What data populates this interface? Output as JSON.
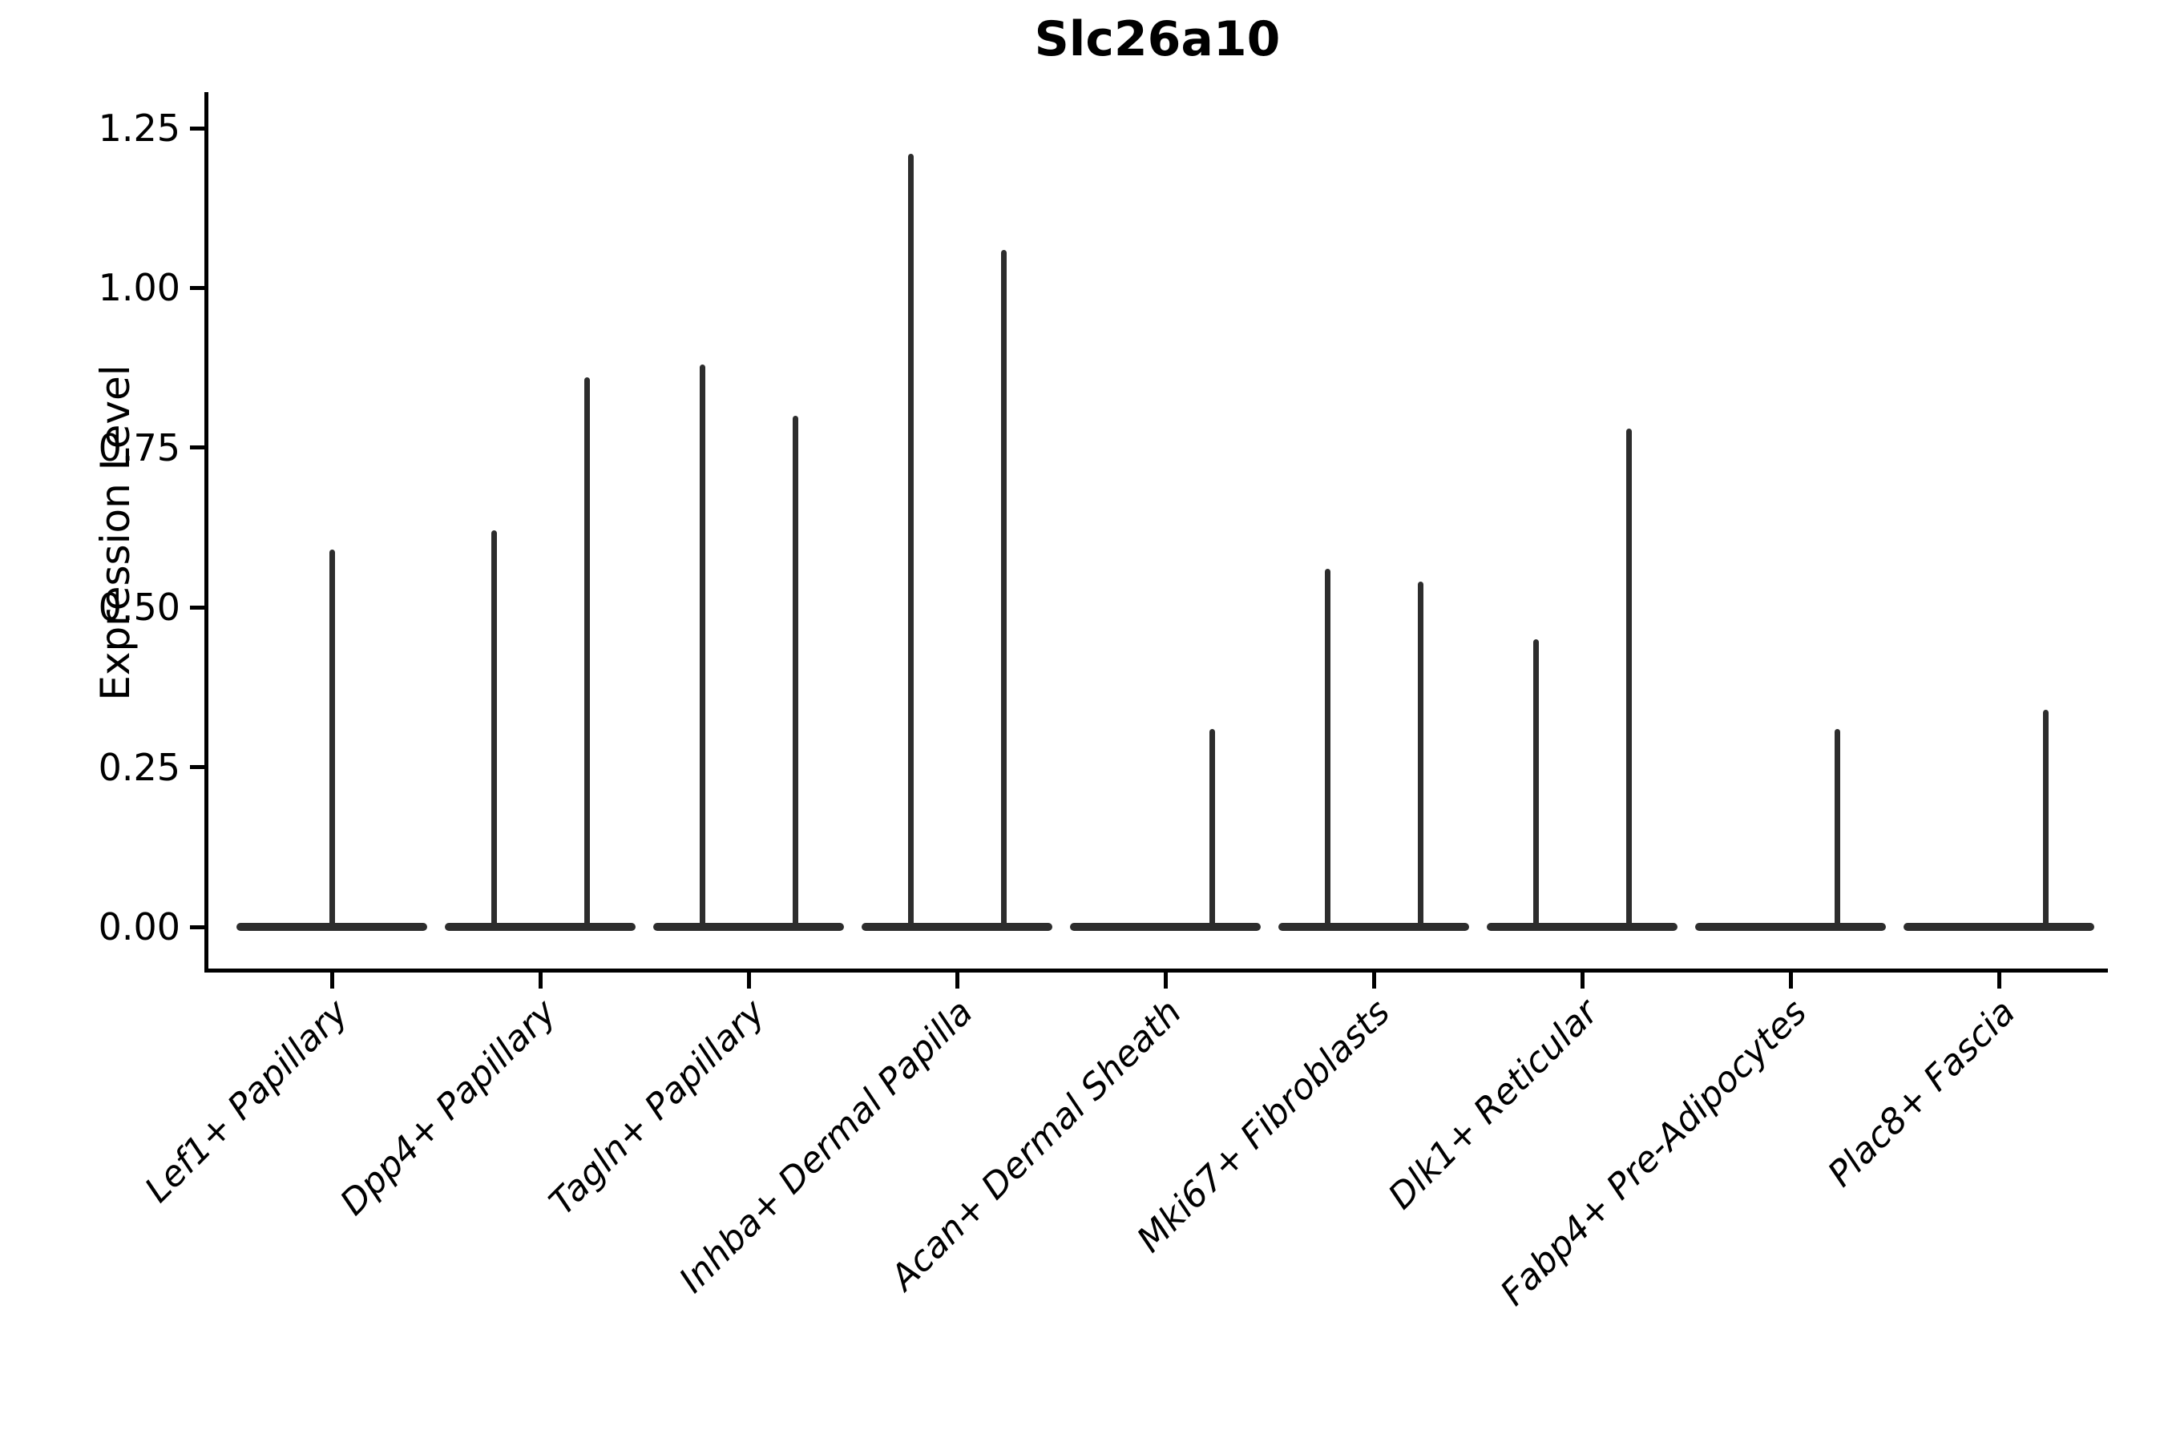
{
  "chart_data": {
    "type": "violin",
    "title": "Slc26a10",
    "ylabel": "Expression Level",
    "xlabel": "",
    "ylim": [
      -0.07,
      1.31
    ],
    "grid": false,
    "legend": null,
    "baseline_value": 0.0,
    "violin_color": "#2d2d2d",
    "axis_color": "#000000",
    "yticks": [
      {
        "label": "0.00",
        "value": 0.0
      },
      {
        "label": "0.25",
        "value": 0.25
      },
      {
        "label": "0.50",
        "value": 0.5
      },
      {
        "label": "0.75",
        "value": 0.75
      },
      {
        "label": "1.00",
        "value": 1.0
      },
      {
        "label": "1.25",
        "value": 1.25
      }
    ],
    "categories": [
      {
        "label": "Lef1+ Papillary",
        "violins": [
          {
            "position": "center",
            "max": 0.59
          }
        ]
      },
      {
        "label": "Dpp4+ Papillary",
        "violins": [
          {
            "position": "left",
            "max": 0.62
          },
          {
            "position": "right",
            "max": 0.86
          }
        ]
      },
      {
        "label": "Tagln+ Papillary",
        "violins": [
          {
            "position": "left",
            "max": 0.88
          },
          {
            "position": "right",
            "max": 0.8
          }
        ]
      },
      {
        "label": "Inhba+ Dermal Papilla",
        "violins": [
          {
            "position": "left",
            "max": 1.21
          },
          {
            "position": "right",
            "max": 1.06
          }
        ]
      },
      {
        "label": "Acan+ Dermal Sheath",
        "violins": [
          {
            "position": "right",
            "max": 0.31
          }
        ]
      },
      {
        "label": "Mki67+ Fibroblasts",
        "violins": [
          {
            "position": "left",
            "max": 0.56
          },
          {
            "position": "right",
            "max": 0.54
          }
        ]
      },
      {
        "label": "Dlk1+ Reticular",
        "violins": [
          {
            "position": "left",
            "max": 0.45
          },
          {
            "position": "right",
            "max": 0.78
          }
        ]
      },
      {
        "label": "Fabp4+ Pre-Adipocytes",
        "violins": [
          {
            "position": "right",
            "max": 0.31
          }
        ]
      },
      {
        "label": "Plac8+ Fascia",
        "violins": [
          {
            "position": "right",
            "max": 0.34
          }
        ]
      }
    ]
  }
}
